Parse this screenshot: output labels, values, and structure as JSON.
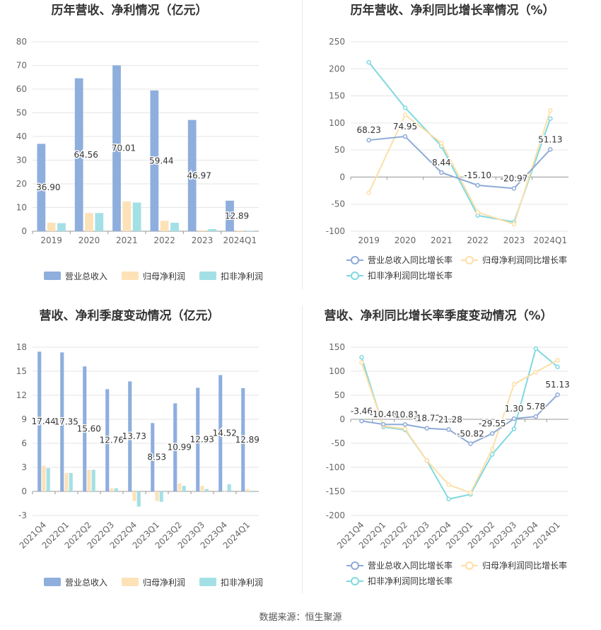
{
  "source_text": "数据来源：恒生聚源",
  "colors": {
    "revenue": "#8eaedd",
    "net_profit": "#fde2b8",
    "deducted_profit": "#a3e0e6",
    "revenue_line": "#8eaad6",
    "net_profit_line": "#fddfa6",
    "deducted_line": "#7fd9e0",
    "grid": "#e6e6e6",
    "axis_text": "#666666",
    "title": "#333333"
  },
  "chart_data": [
    {
      "type": "bar",
      "title": "历年营收、净利情况（亿元）",
      "categories": [
        "2019",
        "2020",
        "2021",
        "2022",
        "2023",
        "2024Q1"
      ],
      "ylim": [
        0,
        80
      ],
      "yticks": [
        0,
        10,
        20,
        30,
        40,
        50,
        60,
        70,
        80
      ],
      "series": [
        {
          "name": "营业总收入",
          "values": [
            36.9,
            64.56,
            70.01,
            59.44,
            46.97,
            12.89
          ],
          "labels": [
            "36.90",
            "64.56",
            "70.01",
            "59.44",
            "46.97",
            "12.89"
          ]
        },
        {
          "name": "归母净利润",
          "values": [
            3.6,
            7.7,
            12.6,
            4.4,
            0.4,
            0.3
          ]
        },
        {
          "name": "扣非净利润",
          "values": [
            3.4,
            7.7,
            12.1,
            3.6,
            0.9,
            0.2
          ]
        }
      ],
      "legend": "bottom"
    },
    {
      "type": "line",
      "title": "历年营收、净利同比增长率情况（%）",
      "categories": [
        "2019",
        "2020",
        "2021",
        "2022",
        "2023",
        "2024Q1"
      ],
      "ylim": [
        -100,
        250
      ],
      "yticks": [
        -100,
        -50,
        0,
        50,
        100,
        150,
        200,
        250
      ],
      "series": [
        {
          "name": "营业总收入同比增长率",
          "values": [
            68.23,
            74.95,
            8.44,
            -15.1,
            -20.97,
            51.13
          ],
          "labels": [
            "68.23",
            "74.95",
            "8.44",
            "-15.10",
            "-20.97",
            "51.13"
          ]
        },
        {
          "name": "归母净利润同比增长率",
          "values": [
            -29,
            115,
            63,
            -65,
            -87,
            123
          ]
        },
        {
          "name": "扣非净利润同比增长率",
          "values": [
            212,
            128,
            57,
            -71,
            -83,
            108
          ]
        }
      ],
      "legend": "bottom"
    },
    {
      "type": "bar",
      "title": "营收、净利季度变动情况（亿元）",
      "categories": [
        "2021Q4",
        "2022Q1",
        "2022Q2",
        "2022Q3",
        "2022Q4",
        "2023Q1",
        "2023Q2",
        "2023Q3",
        "2023Q4",
        "2024Q1"
      ],
      "ylim": [
        -3,
        18
      ],
      "yticks": [
        -3,
        0,
        3,
        6,
        9,
        12,
        15,
        18
      ],
      "series": [
        {
          "name": "营业总收入",
          "values": [
            17.44,
            17.35,
            15.6,
            12.76,
            13.73,
            8.53,
            10.99,
            12.93,
            14.52,
            12.89
          ],
          "labels": [
            "17.44",
            "17.35",
            "15.60",
            "12.76",
            "13.73",
            "8.53",
            "10.99",
            "12.93",
            "14.52",
            "12.89"
          ]
        },
        {
          "name": "归母净利润",
          "values": [
            3.2,
            2.3,
            2.7,
            0.4,
            -1.2,
            -1.2,
            1.0,
            0.7,
            0.0,
            0.3
          ]
        },
        {
          "name": "扣非净利润",
          "values": [
            2.9,
            2.3,
            2.7,
            0.4,
            -1.9,
            -1.3,
            0.7,
            0.3,
            0.9,
            0.1
          ]
        }
      ],
      "legend": "bottom"
    },
    {
      "type": "line",
      "title": "营收、净利同比增长率季度变动情况（%）",
      "categories": [
        "2021Q4",
        "2022Q1",
        "2022Q2",
        "2022Q3",
        "2022Q4",
        "2023Q1",
        "2023Q2",
        "2023Q3",
        "2023Q4",
        "2024Q1"
      ],
      "ylim": [
        -200,
        150
      ],
      "yticks": [
        -200,
        -150,
        -100,
        -50,
        0,
        50,
        100,
        150
      ],
      "series": [
        {
          "name": "营业总收入同比增长率",
          "values": [
            -3.46,
            -10.46,
            -10.81,
            -18.72,
            -21.28,
            -50.82,
            -29.55,
            1.3,
            5.78,
            51.13
          ],
          "labels": [
            "-3.46",
            "-10.46",
            "-10.81",
            "-18.72",
            "-21.28",
            "-50.82",
            "-29.55",
            "1.30",
            "5.78",
            "51.13"
          ]
        },
        {
          "name": "归母净利润同比增长率",
          "values": [
            118,
            -14,
            -20,
            -86,
            -136,
            -153,
            -62,
            73,
            98,
            123
          ]
        },
        {
          "name": "扣非净利润同比增长率",
          "values": [
            129,
            -16,
            -22,
            -86,
            -166,
            -156,
            -73,
            -20,
            147,
            109
          ]
        }
      ],
      "legend": "bottom"
    }
  ]
}
